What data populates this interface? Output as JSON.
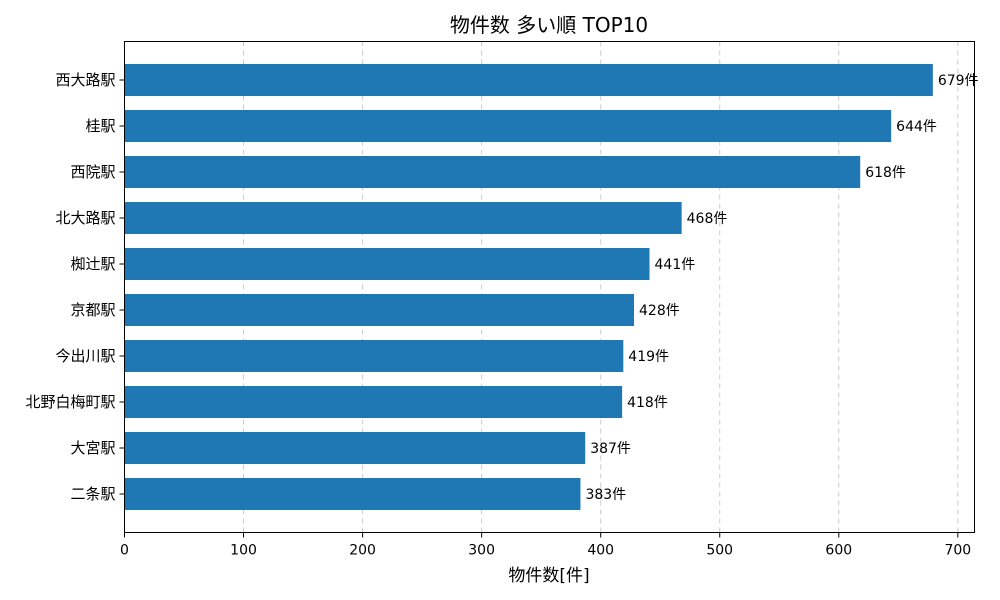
{
  "chart_data": {
    "type": "bar",
    "orientation": "horizontal",
    "title": "物件数 多い順 TOP10",
    "xlabel": "物件数[件]",
    "ylabel": "",
    "xlim": [
      0,
      714
    ],
    "xticks": [
      0,
      100,
      200,
      300,
      400,
      500,
      600,
      700
    ],
    "grid": "x, dashed",
    "value_suffix": "件",
    "categories": [
      "西大路駅",
      "桂駅",
      "西院駅",
      "北大路駅",
      "椥辻駅",
      "京都駅",
      "今出川駅",
      "北野白梅町駅",
      "大宮駅",
      "二条駅"
    ],
    "values": [
      679,
      644,
      618,
      468,
      441,
      428,
      419,
      418,
      387,
      383
    ],
    "bar_color": "#1f77b4"
  }
}
